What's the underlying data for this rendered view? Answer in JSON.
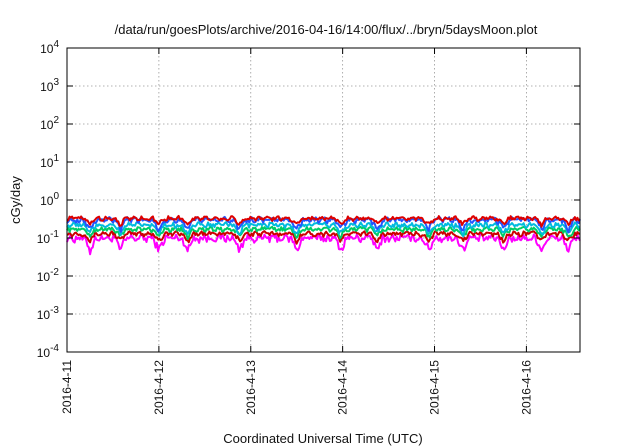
{
  "chart_data": {
    "type": "line",
    "title": "/data/run/goesPlots/archive/2016-04-16/14:00/flux/../bryn/5daysMoon.plot",
    "xlabel": "Coordinated Universal Time (UTC)",
    "ylabel": "cGy/day",
    "yscale": "log",
    "ylim": [
      0.0001,
      10000
    ],
    "xlim": [
      "2016-04-11 00:00",
      "2016-04-16 14:00"
    ],
    "x_ticks": [
      "2016-4-11",
      "2016-4-12",
      "2016-4-13",
      "2016-4-14",
      "2016-4-15",
      "2016-4-16"
    ],
    "y_ticks": [
      {
        "base": "10",
        "exp": "-4"
      },
      {
        "base": "10",
        "exp": "-3"
      },
      {
        "base": "10",
        "exp": "-2"
      },
      {
        "base": "10",
        "exp": "-1"
      },
      {
        "base": "10",
        "exp": "0"
      },
      {
        "base": "10",
        "exp": "1"
      },
      {
        "base": "10",
        "exp": "2"
      },
      {
        "base": "10",
        "exp": "3"
      },
      {
        "base": "10",
        "exp": "4"
      }
    ],
    "grid": true,
    "legend": "none",
    "series": [
      {
        "color": "#ff00ff",
        "level": 0.1,
        "noise": 0.22,
        "dip_depth": 0.55
      },
      {
        "color": "#cc0000",
        "level": 0.13,
        "noise": 0.12,
        "dip_depth": 0.35
      },
      {
        "color": "#00cc66",
        "level": 0.17,
        "noise": 0.12,
        "dip_depth": 0.35
      },
      {
        "color": "#00bbdd",
        "level": 0.22,
        "noise": 0.13,
        "dip_depth": 0.4
      },
      {
        "color": "#2255ff",
        "level": 0.3,
        "noise": 0.14,
        "dip_depth": 0.45
      },
      {
        "color": "#dd0000",
        "level": 0.33,
        "noise": 0.1,
        "dip_depth": 0.3
      }
    ],
    "dip_dates": [
      "2016-04-11 06:00",
      "2016-04-11 14:00",
      "2016-04-12 00:00",
      "2016-04-12 07:30",
      "2016-04-12 21:00",
      "2016-04-13 12:00",
      "2016-04-13 23:30",
      "2016-04-14 09:00",
      "2016-04-14 22:30",
      "2016-04-15 07:30",
      "2016-04-15 18:00",
      "2016-04-16 04:00",
      "2016-04-16 11:00"
    ]
  }
}
